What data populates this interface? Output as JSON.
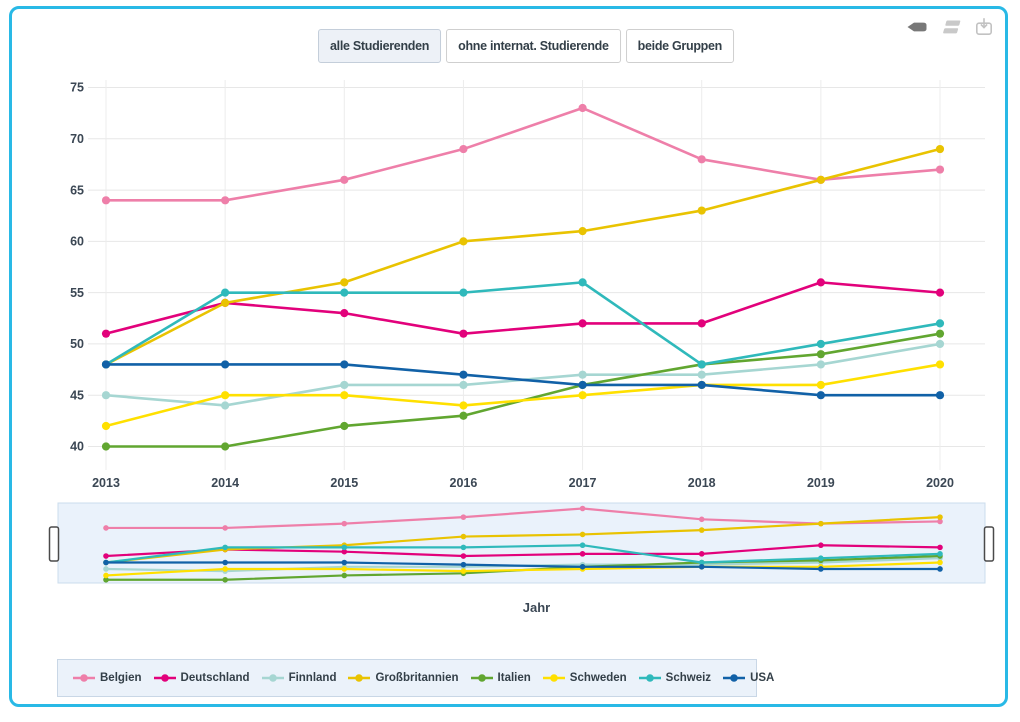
{
  "window": {
    "border_color": "#29b9e6"
  },
  "toolbar": {
    "view_buttons": [
      {
        "label": "alle Studierenden",
        "active": true
      },
      {
        "label": "ohne internat. Studierende",
        "active": false
      },
      {
        "label": "beide Gruppen",
        "active": false
      }
    ],
    "icon_buttons": [
      "pen-icon",
      "rows-icon",
      "download-icon"
    ]
  },
  "chart_data": {
    "type": "line",
    "x": [
      2013,
      2014,
      2015,
      2016,
      2017,
      2018,
      2019,
      2020
    ],
    "xlabel": "Jahr",
    "yticks": [
      40,
      45,
      50,
      55,
      60,
      65,
      70,
      75
    ],
    "ylim": [
      38,
      76
    ],
    "grid": true,
    "legend_position": "bottom",
    "navigator": true,
    "series": [
      {
        "name": "Belgien",
        "color": "#ee7fa9",
        "values": [
          64,
          64,
          66,
          69,
          73,
          68,
          66,
          67
        ]
      },
      {
        "name": "Deutschland",
        "color": "#e2017b",
        "values": [
          51,
          54,
          53,
          51,
          52,
          52,
          56,
          55
        ]
      },
      {
        "name": "Finnland",
        "color": "#a6d6d2",
        "values": [
          45,
          44,
          46,
          46,
          47,
          47,
          48,
          50
        ]
      },
      {
        "name": "Großbritannien",
        "color": "#e9c301",
        "values": [
          48,
          54,
          56,
          60,
          61,
          63,
          66,
          69
        ]
      },
      {
        "name": "Italien",
        "color": "#61a630",
        "values": [
          40,
          40,
          42,
          43,
          46,
          48,
          49,
          51
        ]
      },
      {
        "name": "Schweden",
        "color": "#ffe000",
        "values": [
          42,
          45,
          45,
          44,
          45,
          46,
          46,
          48
        ]
      },
      {
        "name": "Schweiz",
        "color": "#2fb9bb",
        "values": [
          48,
          55,
          55,
          55,
          56,
          48,
          50,
          52
        ]
      },
      {
        "name": "USA",
        "color": "#1161a7",
        "values": [
          48,
          48,
          48,
          47,
          46,
          46,
          45,
          45
        ]
      }
    ]
  }
}
